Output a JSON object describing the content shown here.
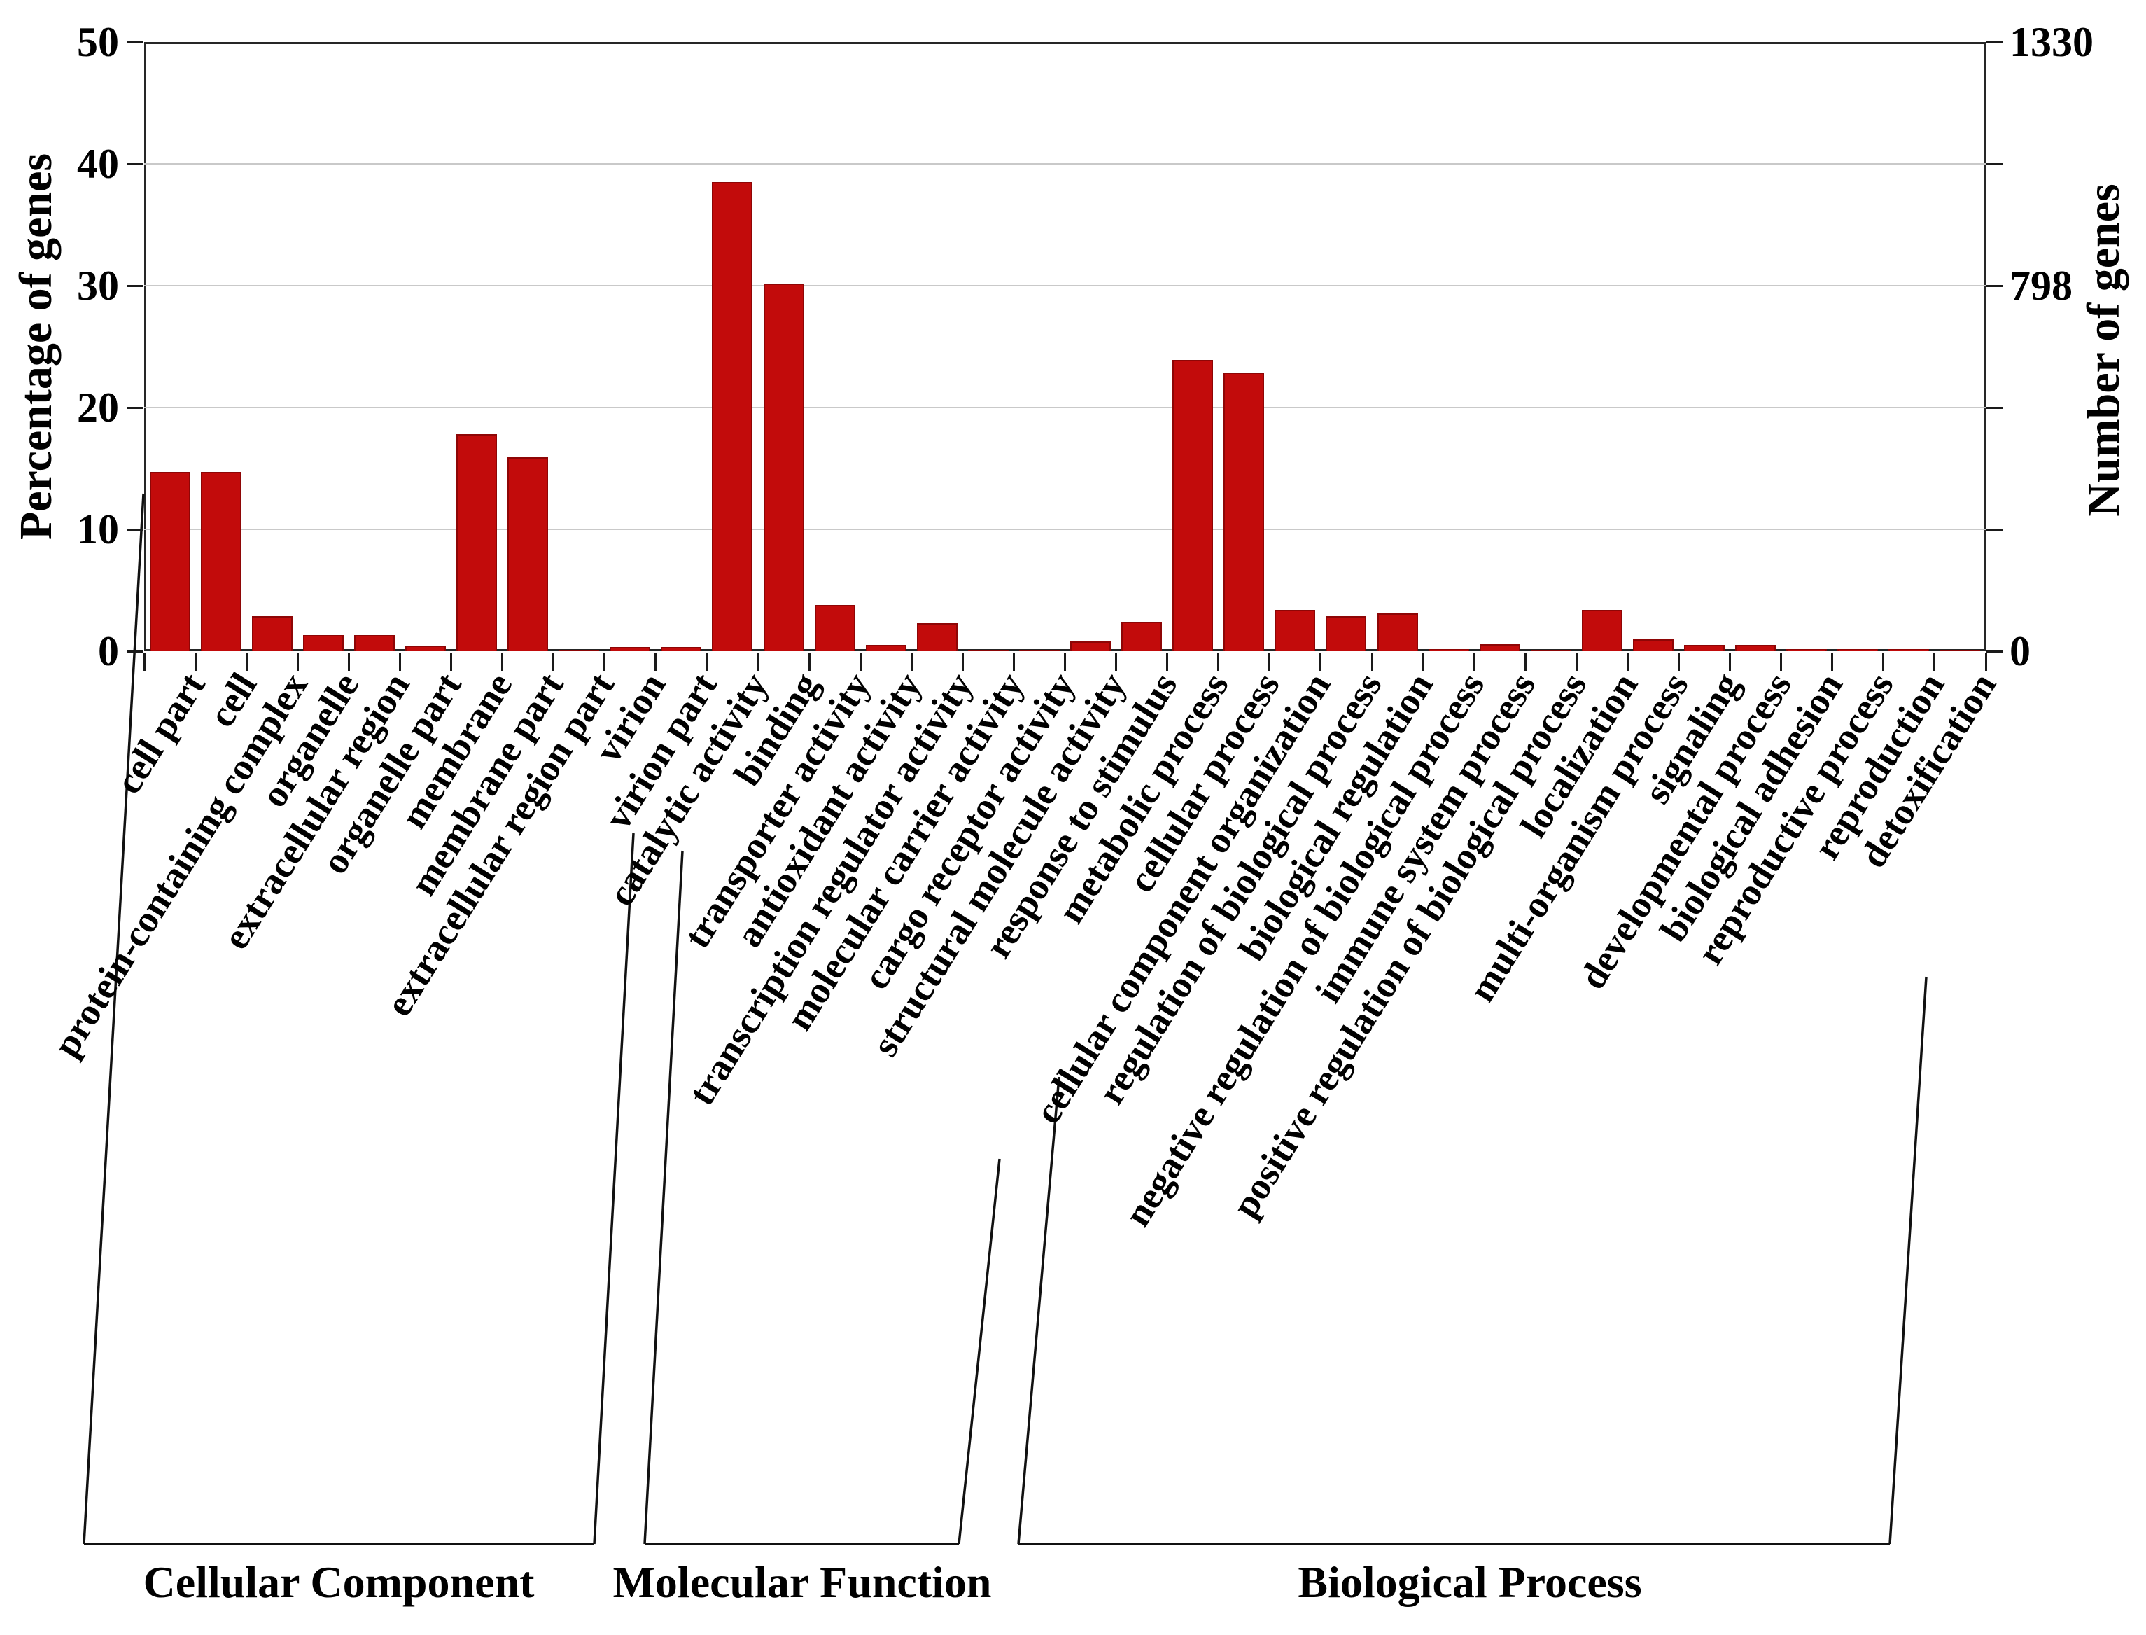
{
  "chart_data": {
    "type": "bar",
    "title": "",
    "grid": "horizontal",
    "legend": "none",
    "bar_color": "#c20b0b",
    "bar_edge_color": "#8e0606",
    "left_axis": {
      "label": "Percentage of genes",
      "ticks": [
        0,
        10,
        20,
        30,
        40,
        50
      ],
      "ylim": [
        0,
        50
      ]
    },
    "right_axis": {
      "label": "Number of genes",
      "tick_labels": [
        {
          "text": "1330",
          "value": 50
        },
        {
          "text": "798",
          "value": 30
        },
        {
          "text": "0",
          "value": 0
        }
      ],
      "ylim": [
        0,
        1330
      ]
    },
    "groups": [
      {
        "name": "Cellular Component",
        "categories": [
          "cell part",
          "cell",
          "protein-containing complex",
          "organelle",
          "extracellular region",
          "organelle part",
          "membrane",
          "membrane part",
          "extracellular region part",
          "virion",
          "virion part"
        ],
        "values": [
          14.7,
          14.7,
          2.9,
          1.3,
          1.3,
          0.45,
          17.8,
          15.9,
          0.05,
          0.35,
          0.35
        ]
      },
      {
        "name": "Molecular Function",
        "categories": [
          "catalytic activity",
          "binding",
          "transporter activity",
          "antioxidant activity",
          "transcription regulator activity",
          "molecular carrier activity",
          "cargo receptor activity",
          "structural molecule activity"
        ],
        "values": [
          38.5,
          30.2,
          3.8,
          0.5,
          2.3,
          0.05,
          0.05,
          0.8
        ]
      },
      {
        "name": "Biological Process",
        "categories": [
          "response to stimulus",
          "metabolic process",
          "cellular process",
          "cellular component organization",
          "regulation of biological process",
          "biological regulation",
          "negative regulation of biological process",
          "immune system process",
          "positive regulation of biological process",
          "localization",
          "multi-organism process",
          "signaling",
          "developmental process",
          "biological adhesion",
          "reproductive process",
          "reproduction",
          "detoxification"
        ],
        "values": [
          2.4,
          23.9,
          22.9,
          3.4,
          2.9,
          3.1,
          0.15,
          0.55,
          0.1,
          3.4,
          1.0,
          0.5,
          0.5,
          0.2,
          0.2,
          0.2,
          0.05
        ]
      }
    ]
  }
}
